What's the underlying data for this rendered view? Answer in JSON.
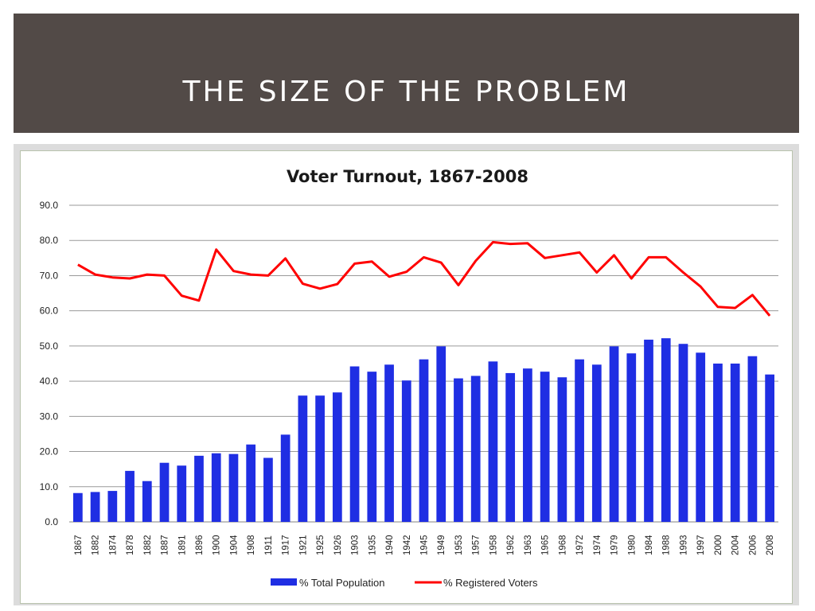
{
  "slide": {
    "title": "THE SIZE OF THE PROBLEM"
  },
  "chart_data": {
    "type": "bar",
    "title": "Voter Turnout, 1867-2008",
    "categories": [
      "1867",
      "1882",
      "1874",
      "1878",
      "1882",
      "1887",
      "1891",
      "1896",
      "1900",
      "1904",
      "1908",
      "1911",
      "1917",
      "1921",
      "1925",
      "1926",
      "1903",
      "1935",
      "1940",
      "1942",
      "1945",
      "1949",
      "1953",
      "1957",
      "1958",
      "1962",
      "1963",
      "1965",
      "1968",
      "1972",
      "1974",
      "1979",
      "1980",
      "1984",
      "1988",
      "1993",
      "1997",
      "2000",
      "2004",
      "2006",
      "2008"
    ],
    "ylim": [
      0,
      90
    ],
    "yticks": [
      "0.0",
      "10.0",
      "20.0",
      "30.0",
      "40.0",
      "50.0",
      "60.0",
      "70.0",
      "80.0",
      "90.0"
    ],
    "grid": true,
    "legend_position": "bottom",
    "series": [
      {
        "name": "% Total Population",
        "type": "bar",
        "color": "#1f2ee3",
        "values": [
          8.2,
          8.5,
          8.8,
          14.5,
          11.6,
          16.8,
          16.0,
          18.8,
          19.5,
          19.3,
          22.0,
          18.2,
          24.8,
          35.9,
          35.9,
          36.8,
          44.2,
          42.7,
          44.7,
          40.2,
          46.2,
          49.9,
          40.8,
          41.5,
          45.6,
          42.3,
          43.6,
          42.7,
          41.1,
          46.2,
          44.7,
          49.9,
          47.9,
          51.8,
          52.2,
          50.6,
          48.1,
          45.0,
          45.0,
          47.1,
          41.9
        ]
      },
      {
        "name": "% Registered Voters",
        "type": "line",
        "color": "#ff0000",
        "values": [
          73.1,
          70.3,
          69.5,
          69.2,
          70.3,
          70.0,
          64.3,
          62.9,
          77.4,
          71.3,
          70.3,
          70.0,
          74.9,
          67.7,
          66.3,
          67.6,
          73.4,
          74.0,
          69.7,
          71.1,
          75.2,
          73.7,
          67.3,
          74.2,
          79.5,
          79.0,
          79.2,
          75.0,
          75.8,
          76.6,
          70.9,
          75.8,
          69.2,
          75.2,
          75.2,
          70.9,
          66.9,
          61.1,
          60.8,
          64.5,
          58.6
        ]
      }
    ]
  }
}
